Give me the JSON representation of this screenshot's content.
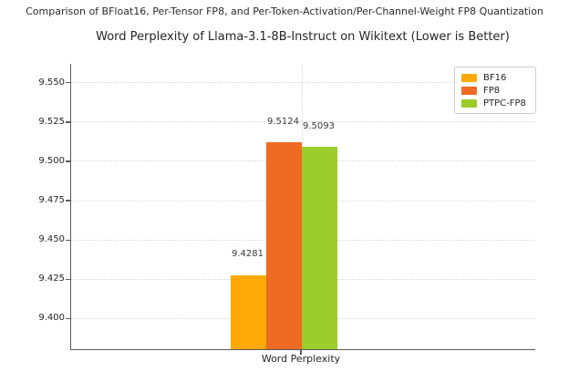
{
  "suptitle": "Comparison of BFloat16, Per-Tensor FP8, and Per-Token-Activation/Per-Channel-Weight FP8 Quantization",
  "chart_data": {
    "type": "bar",
    "title": "Word Perplexity of Llama-3.1-8B-Instruct on Wikitext (Lower is Better)",
    "xlabel": "",
    "categories": [
      "Word Perplexity"
    ],
    "series": [
      {
        "name": "BF16",
        "values": [
          9.4281
        ],
        "label": "9.4281",
        "color": "#FFA907"
      },
      {
        "name": "FP8",
        "values": [
          9.5124
        ],
        "label": "9.5124",
        "color": "#EF6A22"
      },
      {
        "name": "PTPC-FP8",
        "values": [
          9.5093
        ],
        "label": "9.5093",
        "color": "#9CCC2C"
      }
    ],
    "ylim": [
      9.38,
      9.562
    ],
    "yticks": [
      9.4,
      9.425,
      9.45,
      9.475,
      9.5,
      9.525,
      9.55
    ],
    "ytick_decimals": 3,
    "grid": true,
    "legend": {
      "position": "upper right",
      "entries": [
        "BF16",
        "FP8",
        "PTPC-FP8"
      ]
    }
  }
}
